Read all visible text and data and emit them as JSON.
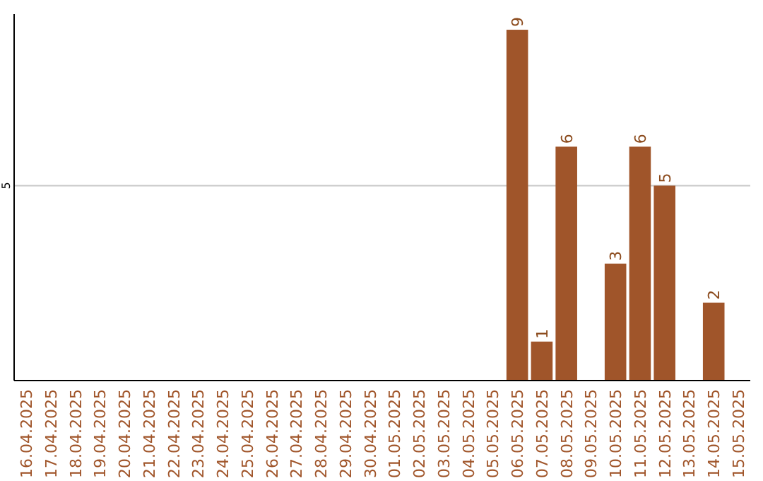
{
  "chart_data": {
    "type": "bar",
    "categories": [
      "16.04.2025",
      "17.04.2025",
      "18.04.2025",
      "19.04.2025",
      "20.04.2025",
      "21.04.2025",
      "22.04.2025",
      "23.04.2025",
      "24.04.2025",
      "25.04.2025",
      "26.04.2025",
      "27.04.2025",
      "28.04.2025",
      "29.04.2025",
      "30.04.2025",
      "01.05.2025",
      "02.05.2025",
      "03.05.2025",
      "04.05.2025",
      "05.05.2025",
      "06.05.2025",
      "07.05.2025",
      "08.05.2025",
      "09.05.2025",
      "10.05.2025",
      "11.05.2025",
      "12.05.2025",
      "13.05.2025",
      "14.05.2025",
      "15.05.2025"
    ],
    "values": [
      null,
      null,
      null,
      null,
      null,
      null,
      null,
      null,
      null,
      null,
      null,
      null,
      null,
      null,
      null,
      null,
      null,
      null,
      null,
      null,
      9,
      1,
      6,
      null,
      3,
      6,
      5,
      null,
      2,
      null
    ],
    "data_labels": true,
    "color": "#a0552a",
    "ylim": [
      0,
      9.4
    ],
    "yticks": [
      5
    ],
    "grid": "y"
  }
}
